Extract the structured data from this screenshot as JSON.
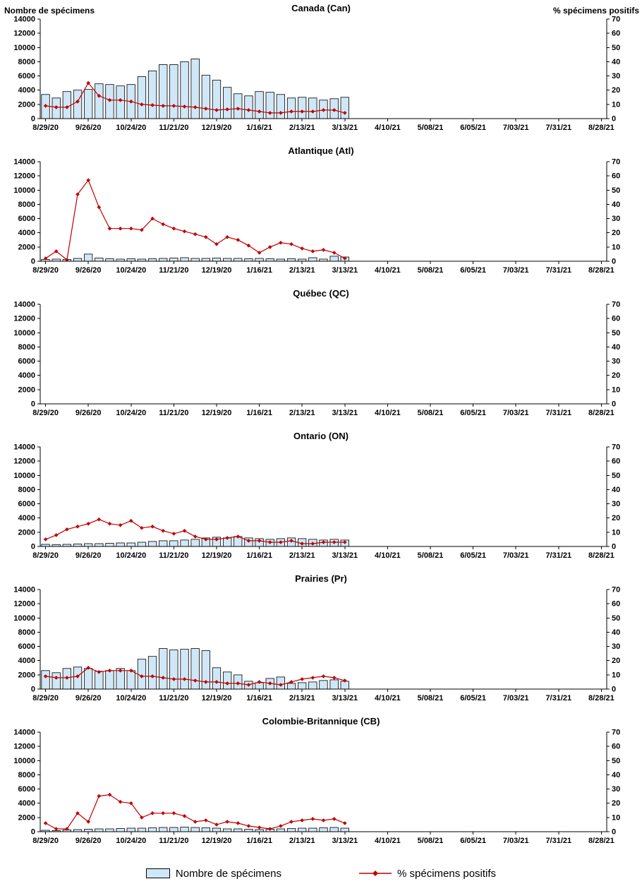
{
  "page": {
    "left_axis_title": "Nombre de spécimens",
    "right_axis_title": "% spécimens positifs"
  },
  "legend": {
    "bars_label": "Nombre de spécimens",
    "line_label": "% spécimens positifs"
  },
  "colors": {
    "bar_fill": "#cfe7f7",
    "bar_stroke": "#000000",
    "line_color": "#c00000",
    "axis_color": "#000000"
  },
  "axes": {
    "left_max": 14000,
    "right_max": 70,
    "left_ticks": [
      0,
      2000,
      4000,
      6000,
      8000,
      10000,
      12000,
      14000
    ],
    "right_ticks": [
      0,
      10,
      20,
      30,
      40,
      50,
      60,
      70
    ],
    "x_tick_labels": [
      "8/29/20",
      "9/26/20",
      "10/24/20",
      "11/21/20",
      "12/19/20",
      "1/16/21",
      "2/13/21",
      "3/13/21",
      "4/10/21",
      "5/08/21",
      "6/05/21",
      "7/03/21",
      "7/31/21",
      "8/28/21"
    ],
    "x_slots": 53,
    "grid": "off",
    "data_weeks": [
      "8/29/20",
      "9/5/20",
      "9/12/20",
      "9/19/20",
      "9/26/20",
      "10/3/20",
      "10/10/20",
      "10/17/20",
      "10/24/20",
      "10/31/20",
      "11/7/20",
      "11/14/20",
      "11/21/20",
      "11/28/20",
      "12/5/20",
      "12/12/20",
      "12/19/20",
      "12/26/20",
      "1/2/21",
      "1/9/21",
      "1/16/21",
      "1/23/21",
      "1/30/21",
      "2/6/21",
      "2/13/21",
      "2/20/21",
      "2/27/21",
      "3/6/21",
      "3/13/21"
    ]
  },
  "chart_data": [
    {
      "type": "bar+line",
      "title": "Canada (Can)",
      "ylim_left": [
        0,
        14000
      ],
      "ylim_right": [
        0,
        70
      ],
      "series": [
        {
          "name": "Nombre de spécimens",
          "type": "bar",
          "axis": "left",
          "values": [
            3400,
            2900,
            3800,
            4000,
            4100,
            4900,
            4800,
            4600,
            4800,
            5900,
            6700,
            7600,
            7600,
            8000,
            8400,
            6100,
            5400,
            4400,
            3500,
            3200,
            3800,
            3700,
            3400,
            2900,
            3000,
            2900,
            2600,
            2800,
            3000
          ]
        },
        {
          "name": "% spécimens positifs",
          "type": "line",
          "axis": "right",
          "values": [
            9,
            8,
            8,
            12,
            25,
            16,
            13,
            13,
            12,
            10,
            9.5,
            9,
            9,
            8.5,
            8,
            7,
            6,
            6.5,
            7,
            6,
            5,
            4,
            4,
            5,
            5,
            5,
            6,
            6,
            4
          ]
        }
      ]
    },
    {
      "type": "bar+line",
      "title": "Atlantique (Atl)",
      "ylim_left": [
        0,
        14000
      ],
      "ylim_right": [
        0,
        70
      ],
      "series": [
        {
          "name": "Nombre de spécimens",
          "type": "bar",
          "axis": "left",
          "values": [
            250,
            300,
            250,
            400,
            1000,
            450,
            350,
            300,
            350,
            300,
            350,
            400,
            450,
            500,
            400,
            400,
            450,
            400,
            400,
            350,
            400,
            350,
            300,
            350,
            300,
            500,
            300,
            700,
            600
          ]
        },
        {
          "name": "% spécimens positifs",
          "type": "line",
          "axis": "right",
          "values": [
            2,
            7,
            1,
            47,
            57,
            38,
            23,
            23,
            23,
            22,
            30,
            26,
            23,
            21,
            19,
            17,
            12,
            17,
            15,
            11,
            6,
            10,
            13,
            12,
            9,
            7,
            8,
            6,
            2
          ]
        }
      ]
    },
    {
      "type": "bar+line",
      "title": "Québec (QC)",
      "ylim_left": [
        0,
        14000
      ],
      "ylim_right": [
        0,
        70
      ],
      "series": [
        {
          "name": "Nombre de spécimens",
          "type": "bar",
          "axis": "left",
          "values": []
        },
        {
          "name": "% spécimens positifs",
          "type": "line",
          "axis": "right",
          "values": []
        }
      ]
    },
    {
      "type": "bar+line",
      "title": "Ontario (ON)",
      "ylim_left": [
        0,
        14000
      ],
      "ylim_right": [
        0,
        70
      ],
      "series": [
        {
          "name": "Nombre de spécimens",
          "type": "bar",
          "axis": "left",
          "values": [
            300,
            250,
            300,
            350,
            400,
            400,
            450,
            500,
            500,
            600,
            700,
            800,
            800,
            900,
            1000,
            1200,
            1300,
            1200,
            1400,
            1200,
            1100,
            1000,
            1100,
            1200,
            1100,
            1000,
            900,
            1000,
            900
          ]
        },
        {
          "name": "% spécimens positifs",
          "type": "line",
          "axis": "right",
          "values": [
            5,
            8,
            12,
            14,
            16,
            19,
            16,
            15,
            18,
            13,
            14,
            11,
            9,
            11,
            7,
            5,
            5,
            6,
            7,
            4,
            4,
            3,
            3,
            4,
            2,
            2,
            3,
            3,
            3
          ]
        }
      ]
    },
    {
      "type": "bar+line",
      "title": "Prairies (Pr)",
      "ylim_left": [
        0,
        14000
      ],
      "ylim_right": [
        0,
        70
      ],
      "series": [
        {
          "name": "Nombre de spécimens",
          "type": "bar",
          "axis": "left",
          "values": [
            2600,
            2300,
            2900,
            3100,
            2900,
            2500,
            2600,
            2900,
            2600,
            4200,
            4600,
            5700,
            5500,
            5600,
            5700,
            5400,
            3000,
            2400,
            2000,
            1100,
            900,
            1500,
            1700,
            800,
            900,
            1000,
            1200,
            1300,
            1100
          ]
        },
        {
          "name": "% spécimens positifs",
          "type": "line",
          "axis": "right",
          "values": [
            9,
            8,
            8,
            9,
            15,
            12,
            13,
            13,
            13,
            9,
            9,
            8,
            7,
            7,
            6,
            5,
            5,
            4,
            4,
            3,
            5,
            4,
            3,
            5,
            7,
            8,
            9,
            8,
            6
          ]
        }
      ]
    },
    {
      "type": "bar+line",
      "title": "Colombie-Britannique (CB)",
      "ylim_left": [
        0,
        14000
      ],
      "ylim_right": [
        0,
        70
      ],
      "series": [
        {
          "name": "Nombre de spécimens",
          "type": "bar",
          "axis": "left",
          "values": [
            200,
            150,
            250,
            300,
            350,
            400,
            400,
            450,
            500,
            500,
            550,
            600,
            600,
            650,
            600,
            550,
            500,
            400,
            400,
            350,
            300,
            350,
            400,
            450,
            500,
            500,
            550,
            600,
            500
          ]
        },
        {
          "name": "% spécimens positifs",
          "type": "line",
          "axis": "right",
          "values": [
            6,
            2,
            2,
            13,
            7,
            25,
            26,
            21,
            20,
            10,
            13,
            13,
            13,
            11,
            7,
            8,
            5,
            7,
            6,
            4,
            3,
            2,
            4,
            7,
            8,
            9,
            8,
            9,
            6
          ]
        }
      ]
    }
  ]
}
